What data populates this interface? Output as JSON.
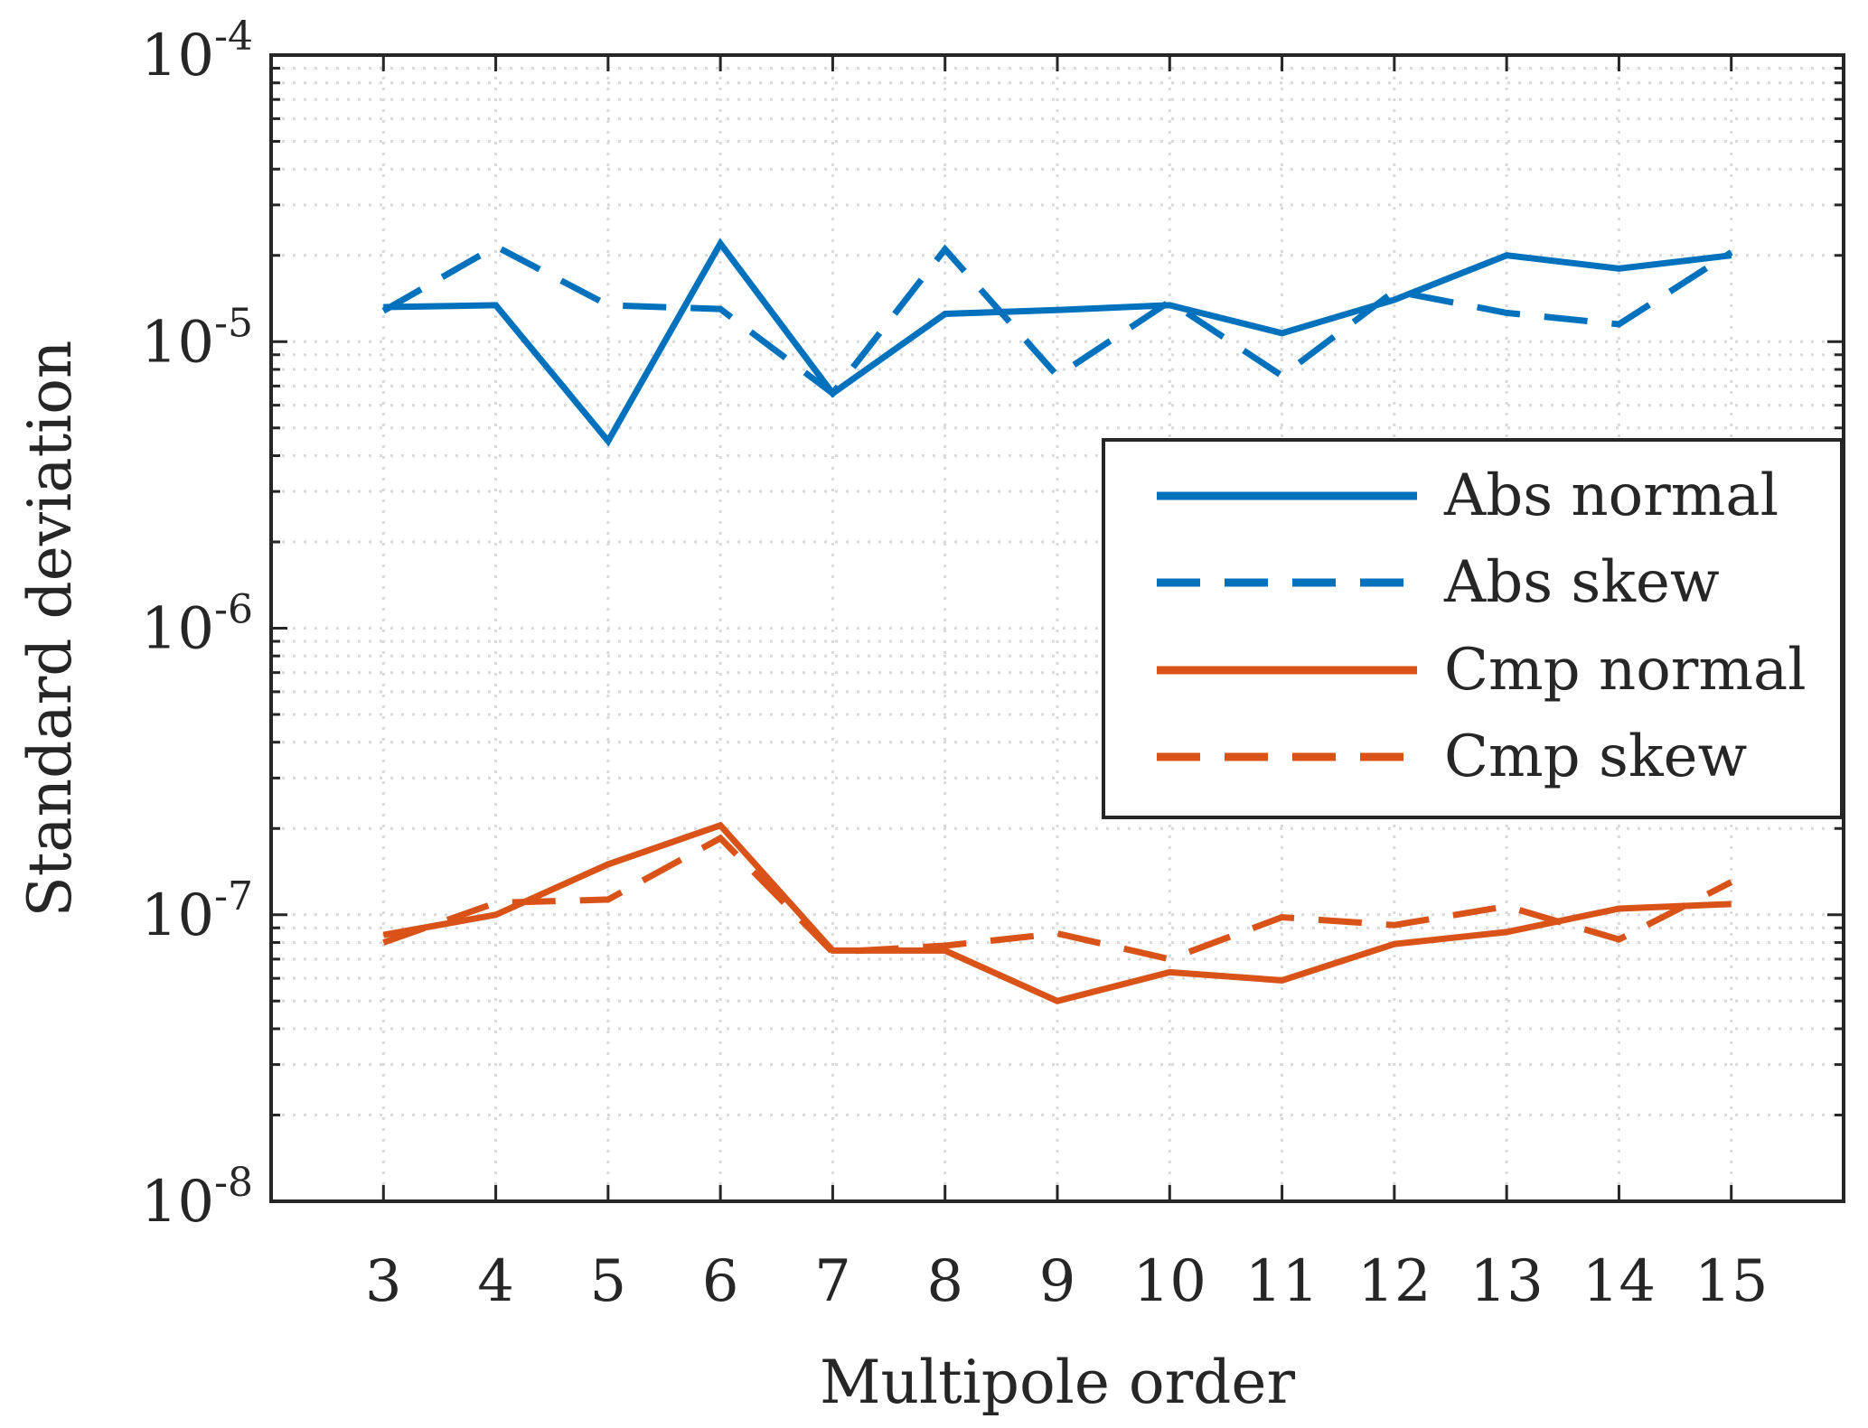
{
  "chart_data": {
    "type": "line",
    "title": "",
    "xlabel": "Multipole order",
    "ylabel": "Standard deviation",
    "x": [
      3,
      4,
      5,
      6,
      7,
      8,
      9,
      10,
      11,
      12,
      13,
      14,
      15
    ],
    "xlim": [
      2,
      16
    ],
    "ylim": [
      1e-08,
      0.0001
    ],
    "yscale": "log",
    "ytick_labels": [
      {
        "base": "10",
        "exp": "-8",
        "value": 1e-08
      },
      {
        "base": "10",
        "exp": "-7",
        "value": 1e-07
      },
      {
        "base": "10",
        "exp": "-6",
        "value": 1e-06
      },
      {
        "base": "10",
        "exp": "-5",
        "value": 1e-05
      },
      {
        "base": "10",
        "exp": "-4",
        "value": 0.0001
      }
    ],
    "grid": true,
    "legend_position": "right",
    "series": [
      {
        "name": "Abs normal",
        "color": "#0072BD",
        "dash": "solid",
        "values": [
          1.32e-05,
          1.34e-05,
          4.5e-06,
          2.2e-05,
          6.6e-06,
          1.25e-05,
          1.29e-05,
          1.34e-05,
          1.07e-05,
          1.4e-05,
          2e-05,
          1.8e-05,
          2e-05
        ]
      },
      {
        "name": "Abs skew",
        "color": "#0072BD",
        "dash": "dashed",
        "values": [
          1.28e-05,
          2.15e-05,
          1.34e-05,
          1.3e-05,
          6.6e-06,
          2.1e-05,
          7.6e-06,
          1.38e-05,
          7.6e-06,
          1.5e-05,
          1.26e-05,
          1.15e-05,
          2.05e-05
        ]
      },
      {
        "name": "Cmp normal",
        "color": "#D95319",
        "dash": "solid",
        "values": [
          8.5e-08,
          1e-07,
          1.5e-07,
          2.05e-07,
          7.5e-08,
          7.5e-08,
          5e-08,
          6.3e-08,
          5.9e-08,
          7.9e-08,
          8.7e-08,
          1.05e-07,
          1.09e-07
        ]
      },
      {
        "name": "Cmp skew",
        "color": "#D95319",
        "dash": "dashed",
        "values": [
          8e-08,
          1.1e-07,
          1.13e-07,
          1.85e-07,
          7.4e-08,
          7.8e-08,
          8.6e-08,
          7e-08,
          9.8e-08,
          9.2e-08,
          1.07e-07,
          8.2e-08,
          1.3e-07
        ]
      }
    ]
  }
}
